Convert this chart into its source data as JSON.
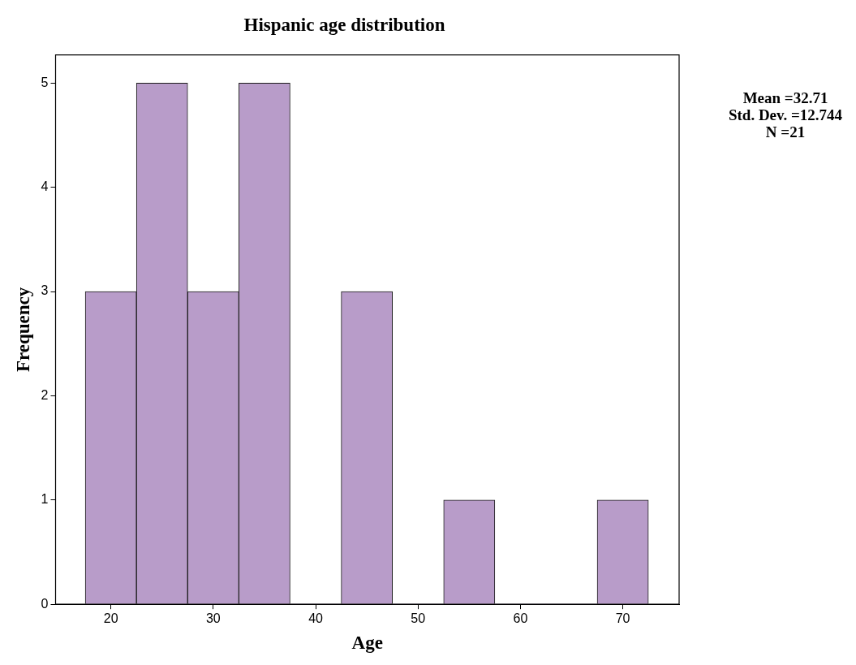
{
  "chart_data": {
    "type": "histogram",
    "title": "Hispanic age distribution",
    "xlabel": "Age",
    "ylabel": "Frequency",
    "bins": [
      17.5,
      22.5,
      27.5,
      32.5,
      37.5,
      42.5,
      47.5,
      52.5,
      57.5,
      62.5,
      67.5,
      72.5
    ],
    "values": [
      3,
      5,
      3,
      5,
      0,
      3,
      0,
      1,
      0,
      0,
      1
    ],
    "color": "#b89cc9",
    "xlim": [
      14.6,
      75.5
    ],
    "xticks": [
      20,
      30,
      40,
      50,
      60,
      70
    ],
    "ylim": [
      0,
      5.27
    ],
    "yticks": [
      0,
      1,
      2,
      3,
      4,
      5
    ],
    "grid": false,
    "legend": false,
    "annotations": [
      "Mean =32.71",
      "Std. Dev. =12.744",
      "N =21"
    ]
  }
}
